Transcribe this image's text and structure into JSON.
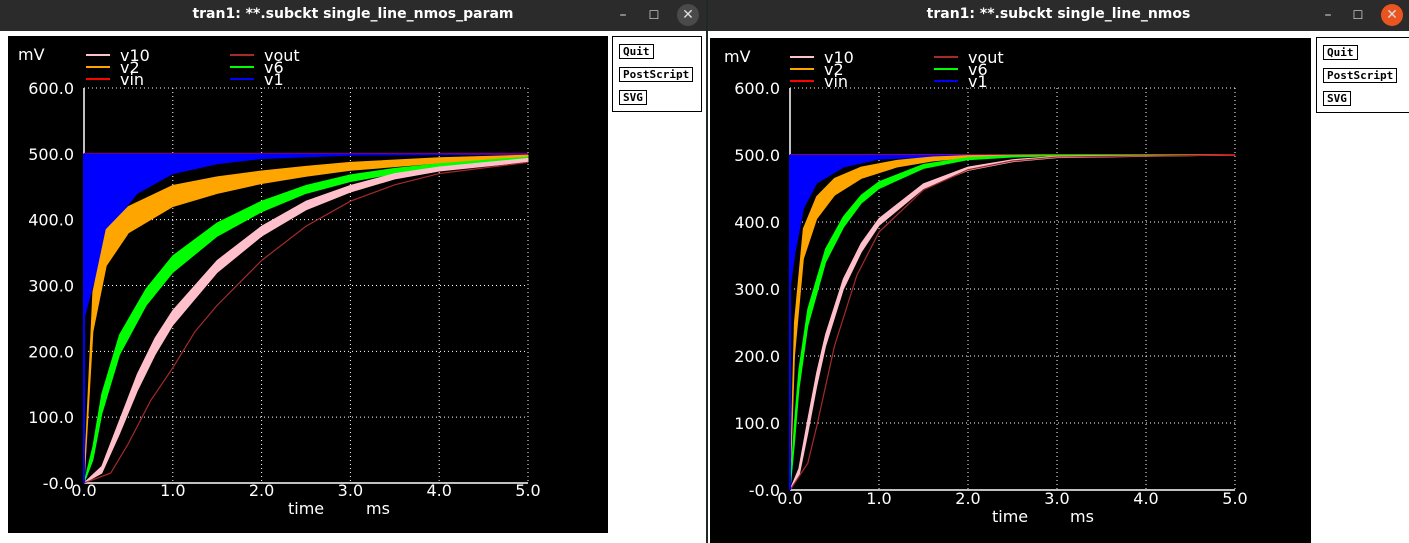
{
  "colors": {
    "titlebar": "#2b2b2b",
    "close": "#e95420",
    "v10": "#ffc0cb",
    "v2": "#ffa500",
    "vin": "#ff0000",
    "vout": "#a52a2a",
    "v6": "#00ff00",
    "v1": "#0000ff",
    "grid": "#ffffff"
  },
  "windows": [
    {
      "title": "tran1: **.subckt single_line_nmos_param",
      "controls": {
        "minimize": "–",
        "maximize": "☐",
        "close": "✕"
      },
      "buttons": {
        "quit": "Quit",
        "postscript": "PostScript",
        "svg": "SVG"
      }
    },
    {
      "title": "tran1: **.subckt single_line_nmos",
      "controls": {
        "minimize": "–",
        "maximize": "☐",
        "close": "✕"
      },
      "buttons": {
        "quit": "Quit",
        "postscript": "PostScript",
        "svg": "SVG"
      }
    }
  ],
  "chart_data": [
    {
      "type": "line",
      "unit_label": "mV",
      "xlabel": "time",
      "xunit": "ms",
      "xlim": [
        0,
        5
      ],
      "ylim": [
        0,
        600
      ],
      "x_ticks": [
        "0.0",
        "1.0",
        "2.0",
        "3.0",
        "4.0",
        "5.0"
      ],
      "y_ticks": [
        "-0.0",
        "100.0",
        "200.0",
        "300.0",
        "400.0",
        "500.0",
        "600.0"
      ],
      "grid": true,
      "legend": [
        {
          "name": "v10",
          "color": "#ffc0cb"
        },
        {
          "name": "vout",
          "color": "#a52a2a"
        },
        {
          "name": "v2",
          "color": "#ffa500"
        },
        {
          "name": "v6",
          "color": "#00ff00"
        },
        {
          "name": "vin",
          "color": "#ff0000"
        },
        {
          "name": "v1",
          "color": "#0000ff"
        }
      ],
      "series": [
        {
          "name": "vin",
          "x": [
            0,
            5
          ],
          "y": [
            500,
            500
          ]
        },
        {
          "name": "v1",
          "x": [
            0,
            0.1,
            0.3,
            0.6,
            1.0,
            1.5,
            2.0,
            3.0,
            5.0
          ],
          "y": [
            [
              250,
              500
            ],
            [
              300,
              500
            ],
            [
              390,
              500
            ],
            [
              440,
              500
            ],
            [
              470,
              500
            ],
            [
              485,
              500
            ],
            [
              493,
              500
            ],
            [
              498,
              500
            ],
            [
              500,
              500
            ]
          ]
        },
        {
          "name": "v2",
          "x": [
            0,
            0.1,
            0.25,
            0.5,
            1.0,
            1.5,
            2.0,
            2.5,
            3.0,
            4.0,
            5.0
          ],
          "y": [
            [
              0,
              0
            ],
            [
              230,
              290
            ],
            [
              330,
              385
            ],
            [
              380,
              420
            ],
            [
              420,
              452
            ],
            [
              440,
              465
            ],
            [
              455,
              474
            ],
            [
              466,
              481
            ],
            [
              475,
              487
            ],
            [
              486,
              494
            ],
            [
              493,
              498
            ]
          ]
        },
        {
          "name": "v6",
          "x": [
            0,
            0.1,
            0.2,
            0.4,
            0.7,
            1.0,
            1.5,
            2.0,
            2.5,
            3.0,
            3.5,
            4.0,
            5.0
          ],
          "y": [
            [
              0,
              0
            ],
            [
              35,
              55
            ],
            [
              105,
              135
            ],
            [
              195,
              225
            ],
            [
              270,
              295
            ],
            [
              320,
              345
            ],
            [
              375,
              395
            ],
            [
              412,
              428
            ],
            [
              440,
              452
            ],
            [
              458,
              468
            ],
            [
              470,
              478
            ],
            [
              479,
              485
            ],
            [
              490,
              495
            ]
          ]
        },
        {
          "name": "v10",
          "x": [
            0,
            0.2,
            0.4,
            0.6,
            0.8,
            1.0,
            1.5,
            2.0,
            2.5,
            3.0,
            3.5,
            4.0,
            5.0
          ],
          "y": [
            [
              0,
              0
            ],
            [
              15,
              25
            ],
            [
              75,
              95
            ],
            [
              140,
              165
            ],
            [
              195,
              220
            ],
            [
              240,
              262
            ],
            [
              320,
              338
            ],
            [
              375,
              390
            ],
            [
              415,
              428
            ],
            [
              442,
              452
            ],
            [
              462,
              470
            ],
            [
              474,
              480
            ],
            [
              488,
              493
            ]
          ]
        },
        {
          "name": "vout",
          "x": [
            0,
            0.3,
            0.5,
            0.75,
            1.0,
            1.25,
            1.5,
            2.0,
            2.5,
            3.0,
            3.5,
            4.0,
            5.0
          ],
          "y": [
            0,
            15,
            60,
            125,
            175,
            230,
            270,
            338,
            390,
            428,
            453,
            470,
            487
          ]
        }
      ]
    },
    {
      "type": "line",
      "unit_label": "mV",
      "xlabel": "time",
      "xunit": "ms",
      "xlim": [
        0,
        5
      ],
      "ylim": [
        0,
        600
      ],
      "x_ticks": [
        "0.0",
        "1.0",
        "2.0",
        "3.0",
        "4.0",
        "5.0"
      ],
      "y_ticks": [
        "-0.0",
        "100.0",
        "200.0",
        "300.0",
        "400.0",
        "500.0",
        "600.0"
      ],
      "grid": true,
      "legend": [
        {
          "name": "v10",
          "color": "#ffc0cb"
        },
        {
          "name": "vout",
          "color": "#a52a2a"
        },
        {
          "name": "v2",
          "color": "#ffa500"
        },
        {
          "name": "v6",
          "color": "#00ff00"
        },
        {
          "name": "vin",
          "color": "#ff0000"
        },
        {
          "name": "v1",
          "color": "#0000ff"
        }
      ],
      "series": [
        {
          "name": "vin",
          "x": [
            0,
            5
          ],
          "y": [
            500,
            500
          ]
        },
        {
          "name": "v1",
          "x": [
            0,
            0.05,
            0.15,
            0.3,
            0.6,
            1.0,
            2.0,
            5.0
          ],
          "y": [
            [
              300,
              500
            ],
            [
              350,
              500
            ],
            [
              420,
              500
            ],
            [
              458,
              500
            ],
            [
              482,
              500
            ],
            [
              494,
              500
            ],
            [
              499,
              500
            ],
            [
              500,
              500
            ]
          ]
        },
        {
          "name": "v2",
          "x": [
            0,
            0.05,
            0.15,
            0.3,
            0.5,
            0.8,
            1.2,
            1.6,
            2.0,
            3.0,
            5.0
          ],
          "y": [
            [
              0,
              0
            ],
            [
              200,
              250
            ],
            [
              345,
              390
            ],
            [
              405,
              438
            ],
            [
              440,
              465
            ],
            [
              465,
              482
            ],
            [
              482,
              492
            ],
            [
              491,
              497
            ],
            [
              496,
              499
            ],
            [
              499,
              500
            ],
            [
              500,
              500
            ]
          ]
        },
        {
          "name": "v6",
          "x": [
            0,
            0.05,
            0.1,
            0.2,
            0.4,
            0.6,
            0.8,
            1.0,
            1.5,
            2.0,
            2.5,
            3.0,
            5.0
          ],
          "y": [
            [
              0,
              0
            ],
            [
              70,
              100
            ],
            [
              150,
              180
            ],
            [
              245,
              270
            ],
            [
              340,
              360
            ],
            [
              392,
              408
            ],
            [
              428,
              440
            ],
            [
              450,
              460
            ],
            [
              480,
              486
            ],
            [
              493,
              496
            ],
            [
              497,
              499
            ],
            [
              499,
              500
            ],
            [
              500,
              500
            ]
          ]
        },
        {
          "name": "v10",
          "x": [
            0,
            0.1,
            0.2,
            0.3,
            0.4,
            0.6,
            0.8,
            1.0,
            1.5,
            2.0,
            2.5,
            3.0,
            5.0
          ],
          "y": [
            [
              0,
              0
            ],
            [
              20,
              32
            ],
            [
              85,
              105
            ],
            [
              155,
              175
            ],
            [
              215,
              232
            ],
            [
              300,
              315
            ],
            [
              355,
              368
            ],
            [
              395,
              405
            ],
            [
              450,
              457
            ],
            [
              477,
              482
            ],
            [
              490,
              493
            ],
            [
              496,
              498
            ],
            [
              500,
              500
            ]
          ]
        },
        {
          "name": "vout",
          "x": [
            0,
            0.2,
            0.3,
            0.5,
            0.75,
            1.0,
            1.5,
            2.0,
            2.5,
            3.0,
            5.0
          ],
          "y": [
            0,
            40,
            95,
            215,
            320,
            385,
            448,
            478,
            491,
            497,
            500
          ]
        }
      ]
    }
  ]
}
